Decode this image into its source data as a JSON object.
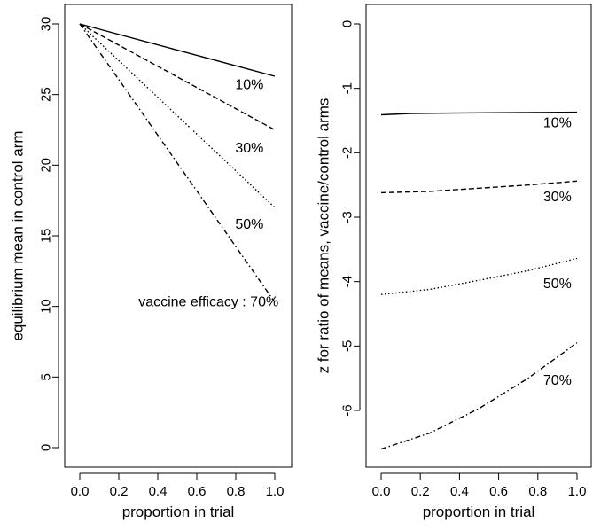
{
  "chart_data": [
    {
      "type": "line",
      "xlabel": "proportion in trial",
      "ylabel": "equilibrium mean in control arm",
      "xlim": [
        0,
        1
      ],
      "ylim": [
        0,
        30
      ],
      "xticks": [
        "0.0",
        "0.2",
        "0.4",
        "0.6",
        "0.8",
        "1.0"
      ],
      "yticks": [
        "0",
        "5",
        "10",
        "15",
        "20",
        "25",
        "30"
      ],
      "series": [
        {
          "name": "10%",
          "x": [
            0,
            1
          ],
          "y": [
            30,
            26.3
          ],
          "dash": "solid"
        },
        {
          "name": "30%",
          "x": [
            0,
            1
          ],
          "y": [
            30,
            22.5
          ],
          "dash": "dashed"
        },
        {
          "name": "50%",
          "x": [
            0,
            1
          ],
          "y": [
            30,
            17.0
          ],
          "dash": "dotted"
        },
        {
          "name": "vaccine efficacy : 70%",
          "x": [
            0,
            1
          ],
          "y": [
            30,
            10.3
          ],
          "dash": "dotdash"
        }
      ],
      "labels": [
        {
          "text": "10%",
          "x": 0.87,
          "y": 25.4
        },
        {
          "text": "30%",
          "x": 0.87,
          "y": 20.9
        },
        {
          "text": "50%",
          "x": 0.87,
          "y": 15.5
        },
        {
          "text": "vaccine efficacy : 70%",
          "x": 0.66,
          "y": 10.0
        }
      ]
    },
    {
      "type": "line",
      "xlabel": "proportion in trial",
      "ylabel": "z for ratio of means, vaccine/control arms",
      "xlim": [
        0,
        1
      ],
      "ylim": [
        -6.5,
        0
      ],
      "xticks": [
        "0.0",
        "0.2",
        "0.4",
        "0.6",
        "0.8",
        "1.0"
      ],
      "yticks": [
        "0",
        "-1",
        "-2",
        "-3",
        "-4",
        "-5",
        "-6"
      ],
      "series": [
        {
          "name": "10%",
          "x": [
            0,
            0.15,
            0.5,
            1
          ],
          "y": [
            -1.41,
            -1.39,
            -1.38,
            -1.37
          ],
          "dash": "solid"
        },
        {
          "name": "30%",
          "x": [
            0,
            0.25,
            0.5,
            0.75,
            1
          ],
          "y": [
            -2.62,
            -2.6,
            -2.55,
            -2.5,
            -2.44
          ],
          "dash": "dashed"
        },
        {
          "name": "50%",
          "x": [
            0,
            0.25,
            0.5,
            0.75,
            1
          ],
          "y": [
            -4.2,
            -4.12,
            -3.98,
            -3.83,
            -3.64
          ],
          "dash": "dotted"
        },
        {
          "name": "70%",
          "x": [
            0,
            0.25,
            0.5,
            0.75,
            1
          ],
          "y": [
            -6.6,
            -6.35,
            -5.97,
            -5.5,
            -4.95
          ],
          "dash": "dotdash"
        }
      ],
      "labels": [
        {
          "text": "10%",
          "x": 0.9,
          "y": -1.6
        },
        {
          "text": "30%",
          "x": 0.9,
          "y": -2.75
        },
        {
          "text": "50%",
          "x": 0.9,
          "y": -4.1
        },
        {
          "text": "70%",
          "x": 0.9,
          "y": -5.6
        }
      ]
    }
  ]
}
